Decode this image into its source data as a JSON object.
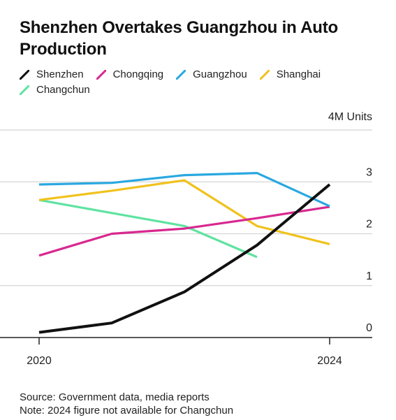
{
  "title": "Shenzhen Overtakes Guangzhou in Auto Production",
  "footer": {
    "source": "Source: Government data, media reports",
    "note": "Note: 2024 figure not available for Changchun"
  },
  "colors": {
    "Shenzhen": "#111111",
    "Chongqing": "#d8288f",
    "Guangzhou": "#2aa8e0",
    "Shanghai": "#f0c21d",
    "Changchun": "#5fe3a1"
  },
  "chart_data": {
    "type": "line",
    "x": [
      2020,
      2021,
      2022,
      2023,
      2024
    ],
    "x_tick_labels": [
      "2020",
      "2024"
    ],
    "y_unit_label": "4M Units",
    "y_ticks": [
      0,
      1,
      2,
      3
    ],
    "ylim": [
      -0.3,
      4
    ],
    "grid": true,
    "legend_position": "top-left",
    "series": [
      {
        "name": "Shenzhen",
        "values": [
          0.1,
          0.28,
          0.88,
          1.78,
          2.95
        ]
      },
      {
        "name": "Chongqing",
        "values": [
          1.58,
          2.0,
          2.1,
          2.3,
          2.52
        ]
      },
      {
        "name": "Guangzhou",
        "values": [
          2.95,
          2.98,
          3.13,
          3.17,
          2.53
        ]
      },
      {
        "name": "Shanghai",
        "values": [
          2.65,
          2.83,
          3.03,
          2.15,
          1.8
        ]
      },
      {
        "name": "Changchun",
        "values": [
          2.65,
          2.4,
          2.15,
          1.55,
          null
        ]
      }
    ]
  }
}
